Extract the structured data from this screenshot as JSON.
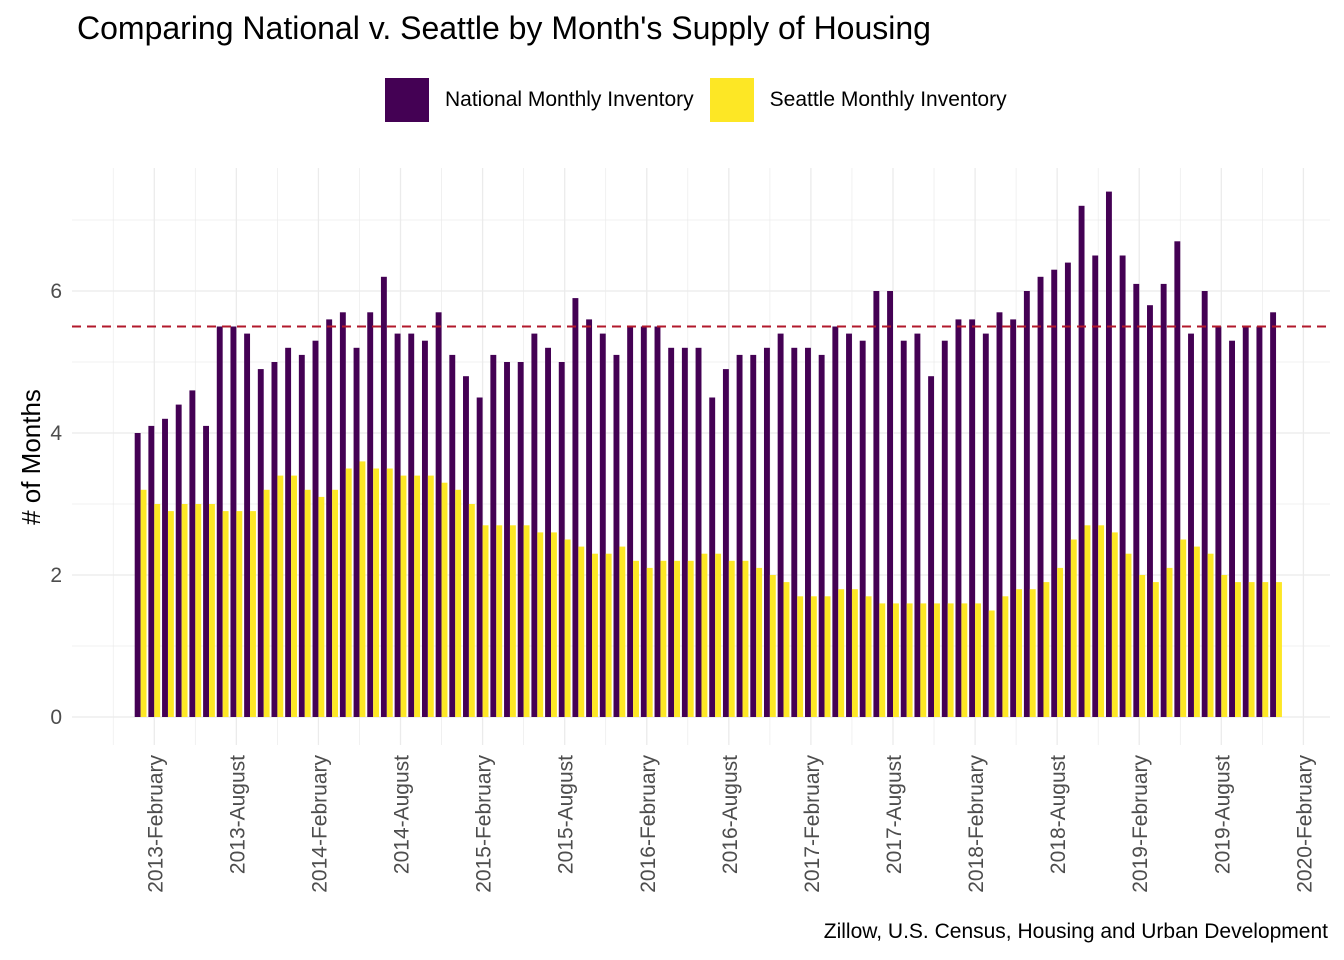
{
  "chart_data": {
    "type": "bar",
    "title": "Comparing National v. Seattle by Month's Supply of Housing",
    "caption": "Zillow, U.S. Census, Housing and Urban Development",
    "xlabel": "",
    "ylabel": "# of Months",
    "ylim": [
      0,
      7.6
    ],
    "y_ticks": [
      "0",
      "2",
      "4",
      "6"
    ],
    "x_ticks": [
      "2013-February",
      "2013-August",
      "2014-February",
      "2014-August",
      "2015-February",
      "2015-August",
      "2016-February",
      "2016-August",
      "2017-February",
      "2017-August",
      "2018-February",
      "2018-August",
      "2019-February",
      "2019-August",
      "2020-February"
    ],
    "x_start": "2013-01",
    "reference_line": {
      "value": 5.5,
      "style": "dashed",
      "color": "#b2182b"
    },
    "grid": true,
    "legend_position": "top",
    "series": [
      {
        "name": "National Monthly Inventory",
        "color": "#440154",
        "values": [
          4.0,
          4.1,
          4.2,
          4.4,
          4.6,
          4.1,
          5.5,
          5.5,
          5.4,
          4.9,
          5.0,
          5.2,
          5.1,
          5.3,
          5.6,
          5.7,
          5.2,
          5.7,
          6.2,
          5.4,
          5.4,
          5.3,
          5.7,
          5.1,
          4.8,
          4.5,
          5.1,
          5.0,
          5.0,
          5.4,
          5.2,
          5.0,
          5.9,
          5.6,
          5.4,
          5.1,
          5.5,
          5.5,
          5.5,
          5.2,
          5.2,
          5.2,
          4.5,
          4.9,
          5.1,
          5.1,
          5.2,
          5.4,
          5.2,
          5.2,
          5.1,
          5.5,
          5.4,
          5.3,
          6.0,
          6.0,
          5.3,
          5.4,
          4.8,
          5.3,
          5.6,
          5.6,
          5.4,
          5.7,
          5.6,
          6.0,
          6.2,
          6.3,
          6.4,
          7.2,
          6.5,
          7.4,
          6.5,
          6.1,
          5.8,
          6.1,
          6.7,
          5.4,
          6.0,
          5.5,
          5.3,
          5.5,
          5.5,
          5.7
        ]
      },
      {
        "name": "Seattle Monthly Inventory",
        "color": "#fde725",
        "values": [
          3.2,
          3.0,
          2.9,
          3.0,
          3.0,
          3.0,
          2.9,
          2.9,
          2.9,
          3.2,
          3.4,
          3.4,
          3.2,
          3.1,
          3.2,
          3.5,
          3.6,
          3.5,
          3.5,
          3.4,
          3.4,
          3.4,
          3.3,
          3.2,
          3.0,
          2.7,
          2.7,
          2.7,
          2.7,
          2.6,
          2.6,
          2.5,
          2.4,
          2.3,
          2.3,
          2.4,
          2.2,
          2.1,
          2.2,
          2.2,
          2.2,
          2.3,
          2.3,
          2.2,
          2.2,
          2.1,
          2.0,
          1.9,
          1.7,
          1.7,
          1.7,
          1.8,
          1.8,
          1.7,
          1.6,
          1.6,
          1.6,
          1.6,
          1.6,
          1.6,
          1.6,
          1.6,
          1.5,
          1.7,
          1.8,
          1.8,
          1.9,
          2.1,
          2.5,
          2.7,
          2.7,
          2.6,
          2.3,
          2.0,
          1.9,
          2.1,
          2.5,
          2.4,
          2.3,
          2.0,
          1.9,
          1.9,
          1.9,
          1.9
        ]
      }
    ]
  }
}
